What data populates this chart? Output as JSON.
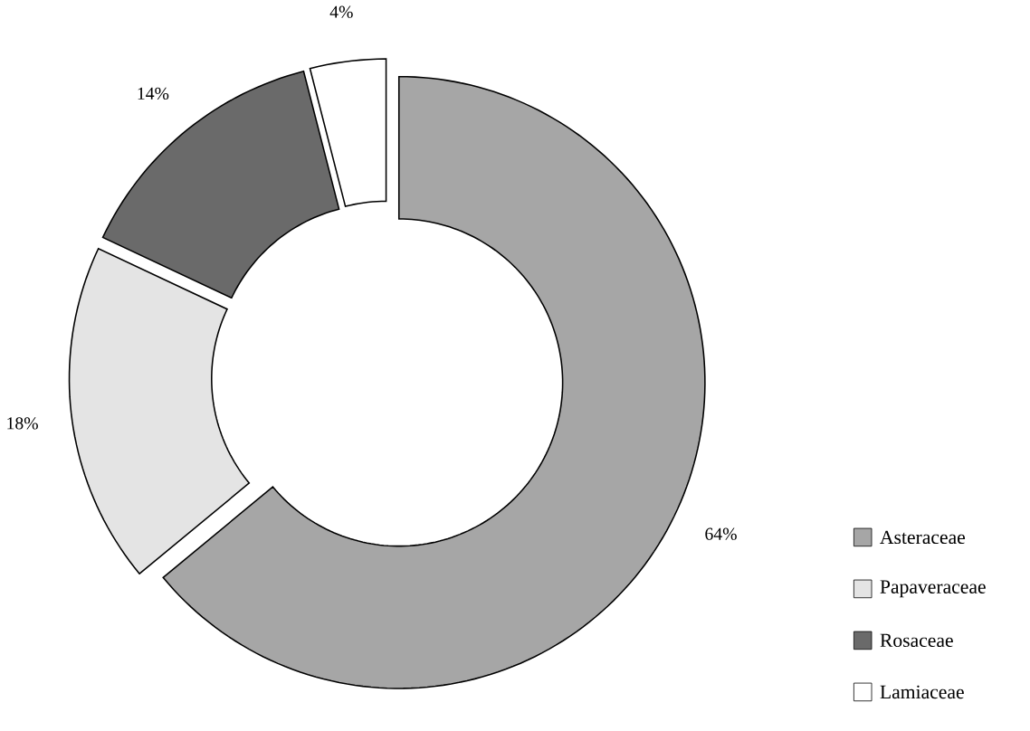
{
  "chart_data": {
    "type": "donut",
    "categories": [
      "Asteraceae",
      "Papaveraceae",
      "Rosaceae",
      "Lamiaceae"
    ],
    "values": [
      64,
      18,
      14,
      4
    ],
    "colors": [
      "#a6a6a6",
      "#e4e4e4",
      "#6a6a6a",
      "#ffffff"
    ],
    "value_labels": [
      "64%",
      "18%",
      "14%",
      "4%"
    ],
    "legend": "bottom right"
  }
}
